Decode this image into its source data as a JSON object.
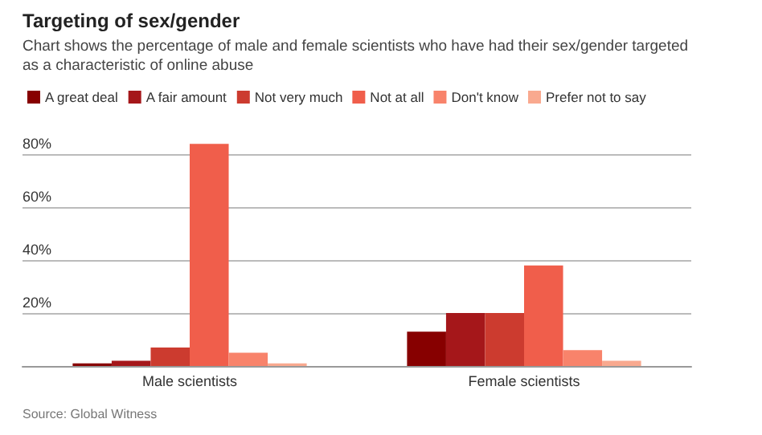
{
  "chart_data": {
    "type": "bar",
    "title": "Targeting of sex/gender",
    "subtitle": "Chart shows the percentage of male and female scientists who have had their sex/gender targeted as a characteristic of online abuse",
    "categories": [
      "Male scientists",
      "Female scientists"
    ],
    "series": [
      {
        "name": "A great deal",
        "color": "#870000",
        "values": [
          1,
          13
        ]
      },
      {
        "name": "A fair amount",
        "color": "#a5171a",
        "values": [
          2,
          20
        ]
      },
      {
        "name": "Not very much",
        "color": "#cc3b2f",
        "values": [
          7,
          20
        ]
      },
      {
        "name": "Not at all",
        "color": "#f05e4b",
        "values": [
          84,
          38
        ]
      },
      {
        "name": "Don't know",
        "color": "#f8836b",
        "values": [
          5,
          6
        ]
      },
      {
        "name": "Prefer not to say",
        "color": "#f9a98f",
        "values": [
          1,
          2
        ]
      }
    ],
    "ylim": [
      0,
      85
    ],
    "yticks": [
      {
        "value": 0,
        "label": null
      },
      {
        "value": 20,
        "label": "20%"
      },
      {
        "value": 40,
        "label": "40%"
      },
      {
        "value": 60,
        "label": "60%"
      },
      {
        "value": 80,
        "label": "80%"
      }
    ],
    "grid": "y",
    "legend": "top left",
    "annotations": [
      "Source: Global Witness"
    ]
  }
}
